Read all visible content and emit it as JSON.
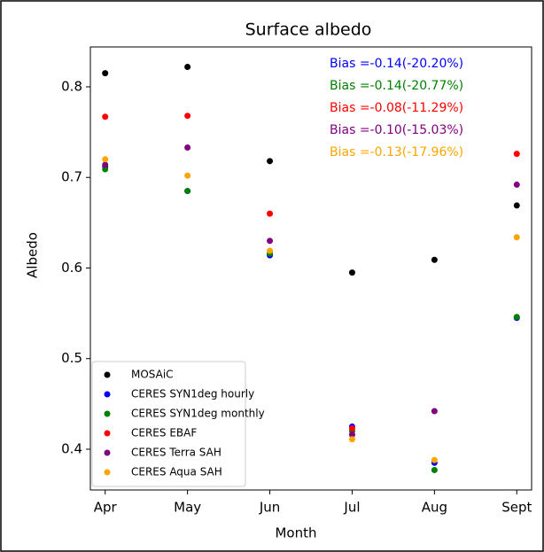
{
  "chart_data": {
    "type": "scatter",
    "title": "Surface albedo",
    "x_label": "Month",
    "y_label": "Albedo",
    "categories": [
      "Apr",
      "May",
      "Jun",
      "Jul",
      "Aug",
      "Sept"
    ],
    "series": [
      {
        "name": "MOSAiC",
        "color": "#000000",
        "values": [
          0.815,
          0.822,
          0.718,
          0.595,
          0.609,
          0.669
        ]
      },
      {
        "name": "CERES SYN1deg hourly",
        "color": "#0000ff",
        "values": [
          0.712,
          0.685,
          0.614,
          0.425,
          0.385,
          0.545
        ]
      },
      {
        "name": "CERES SYN1deg monthly",
        "color": "#008000",
        "values": [
          0.709,
          0.685,
          0.616,
          0.42,
          0.377,
          0.546
        ]
      },
      {
        "name": "CERES EBAF",
        "color": "#ff0000",
        "values": [
          0.767,
          0.768,
          0.66,
          0.423,
          null,
          0.726
        ]
      },
      {
        "name": "CERES Terra SAH",
        "color": "#800080",
        "values": [
          0.714,
          0.733,
          0.63,
          0.416,
          0.442,
          0.692
        ]
      },
      {
        "name": "CERES Aqua SAH",
        "color": "#ffa500",
        "values": [
          0.72,
          0.702,
          0.619,
          0.411,
          0.388,
          0.634
        ]
      }
    ],
    "annotations": [
      {
        "text": "Bias =-0.14(-20.20%)",
        "color": "#0000ff"
      },
      {
        "text": "Bias =-0.14(-20.77%)",
        "color": "#008000"
      },
      {
        "text": "Bias =-0.08(-11.29%)",
        "color": "#ff0000"
      },
      {
        "text": "Bias =-0.10(-15.03%)",
        "color": "#800080"
      },
      {
        "text": "Bias =-0.13(-17.96%)",
        "color": "#ffa500"
      }
    ],
    "ylim": [
      0.355,
      0.844
    ],
    "yticks": [
      0.4,
      0.5,
      0.6,
      0.7,
      0.8
    ],
    "legend": "lower left"
  }
}
